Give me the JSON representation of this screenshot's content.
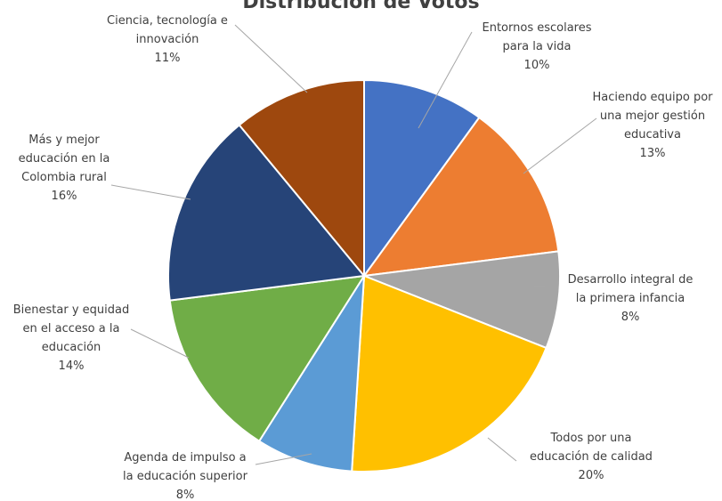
{
  "chart_data": {
    "type": "pie",
    "title": "Distribución de Votos",
    "slices": [
      {
        "label": [
          "Entornos escolares",
          "para la vida"
        ],
        "value": 10,
        "percent_label": "10%",
        "color": "#4472C4"
      },
      {
        "label": [
          "Haciendo equipo por",
          "una mejor gestión",
          "educativa"
        ],
        "value": 13,
        "percent_label": "13%",
        "color": "#ED7D31"
      },
      {
        "label": [
          "Desarrollo integral de",
          "la primera infancia"
        ],
        "value": 8,
        "percent_label": "8%",
        "color": "#A5A5A5"
      },
      {
        "label": [
          "Todos por una",
          "educación de calidad"
        ],
        "value": 20,
        "percent_label": "20%",
        "color": "#FFC000"
      },
      {
        "label": [
          "Agenda de impulso a",
          "la educación superior"
        ],
        "value": 8,
        "percent_label": "8%",
        "color": "#5B9BD5"
      },
      {
        "label": [
          "Bienestar y equidad",
          "en el acceso a la",
          "educación"
        ],
        "value": 14,
        "percent_label": "14%",
        "color": "#70AD47"
      },
      {
        "label": [
          "Más y mejor",
          "educación en la",
          "Colombia rural"
        ],
        "value": 16,
        "percent_label": "16%",
        "color": "#264478"
      },
      {
        "label": [
          "Ciencia, tecnología e",
          "innovación"
        ],
        "value": 11,
        "percent_label": "11%",
        "color": "#9E480E"
      }
    ]
  }
}
